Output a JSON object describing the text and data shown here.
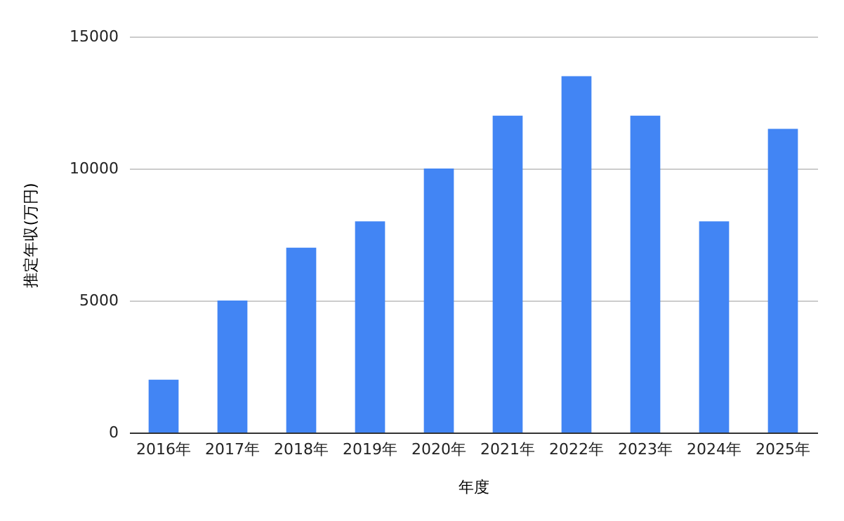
{
  "chart_data": {
    "type": "bar",
    "xlabel": "年度",
    "ylabel": "推定年収(万円)",
    "categories": [
      "2016年",
      "2017年",
      "2018年",
      "2019年",
      "2020年",
      "2021年",
      "2022年",
      "2023年",
      "2024年",
      "2025年"
    ],
    "values": [
      2000,
      5000,
      7000,
      8000,
      10000,
      12000,
      13500,
      12000,
      8000,
      11500
    ],
    "color": "#4285f4",
    "ylim": [
      0,
      15000
    ],
    "yticks": [
      0,
      5000,
      10000,
      15000
    ],
    "grid": "y"
  }
}
